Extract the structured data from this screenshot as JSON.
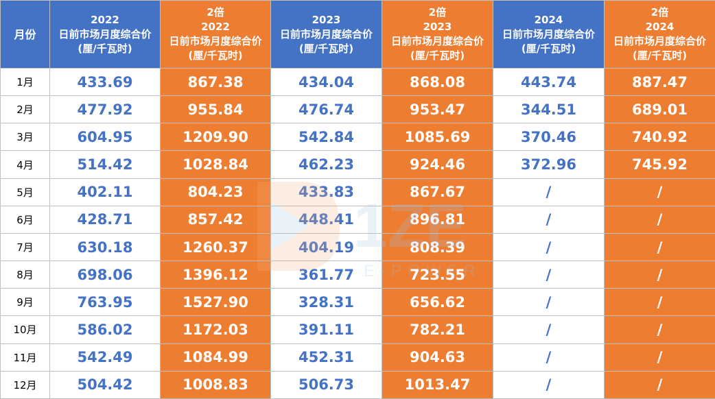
{
  "table": {
    "headers": [
      {
        "lines": [
          "月份"
        ],
        "color": "blue"
      },
      {
        "lines": [
          "2022",
          "日前市场月度综合价",
          "(厘/千瓦时)"
        ],
        "color": "blue"
      },
      {
        "lines": [
          "2倍",
          "2022",
          "日前市场月度综合价",
          "(厘/千瓦时)"
        ],
        "color": "orange"
      },
      {
        "lines": [
          "2023",
          "日前市场月度综合价",
          "(厘/千瓦时)"
        ],
        "color": "blue"
      },
      {
        "lines": [
          "2倍",
          "2023",
          "日前市场月度综合价",
          "(厘/千瓦时)"
        ],
        "color": "orange"
      },
      {
        "lines": [
          "2024",
          "日前市场月度综合价",
          "(厘/千瓦时)"
        ],
        "color": "blue"
      },
      {
        "lines": [
          "2倍",
          "2024",
          "日前市场月度综合价",
          "(厘/千瓦时)"
        ],
        "color": "orange"
      }
    ],
    "rows": [
      {
        "month": "1月",
        "cells": [
          "433.69",
          "867.38",
          "434.04",
          "868.08",
          "443.74",
          "887.47"
        ]
      },
      {
        "month": "2月",
        "cells": [
          "477.92",
          "955.84",
          "476.74",
          "953.47",
          "344.51",
          "689.01"
        ]
      },
      {
        "month": "3月",
        "cells": [
          "604.95",
          "1209.90",
          "542.84",
          "1085.69",
          "370.46",
          "740.92"
        ]
      },
      {
        "month": "4月",
        "cells": [
          "514.42",
          "1028.84",
          "462.23",
          "924.46",
          "372.96",
          "745.92"
        ]
      },
      {
        "month": "5月",
        "cells": [
          "402.11",
          "804.23",
          "433.83",
          "867.67",
          "/",
          "/"
        ]
      },
      {
        "month": "6月",
        "cells": [
          "428.71",
          "857.42",
          "448.41",
          "896.81",
          "/",
          "/"
        ]
      },
      {
        "month": "7月",
        "cells": [
          "630.18",
          "1260.37",
          "404.19",
          "808.39",
          "/",
          "/"
        ]
      },
      {
        "month": "8月",
        "cells": [
          "698.06",
          "1396.12",
          "361.77",
          "723.55",
          "/",
          "/"
        ]
      },
      {
        "month": "9月",
        "cells": [
          "763.95",
          "1527.90",
          "328.31",
          "656.62",
          "/",
          "/"
        ]
      },
      {
        "month": "10月",
        "cells": [
          "586.02",
          "1172.03",
          "391.11",
          "782.21",
          "/",
          "/"
        ]
      },
      {
        "month": "11月",
        "cells": [
          "542.49",
          "1084.99",
          "452.31",
          "904.63",
          "/",
          "/"
        ]
      },
      {
        "month": "12月",
        "cells": [
          "504.42",
          "1008.83",
          "506.73",
          "1013.47",
          "/",
          "/"
        ]
      }
    ]
  },
  "watermark": {
    "brand": "1ZE",
    "sub": "E-POWER"
  },
  "colors": {
    "blue": "#4472c4",
    "orange": "#ed7d31",
    "white": "#ffffff",
    "border": "#bfbfbf"
  }
}
